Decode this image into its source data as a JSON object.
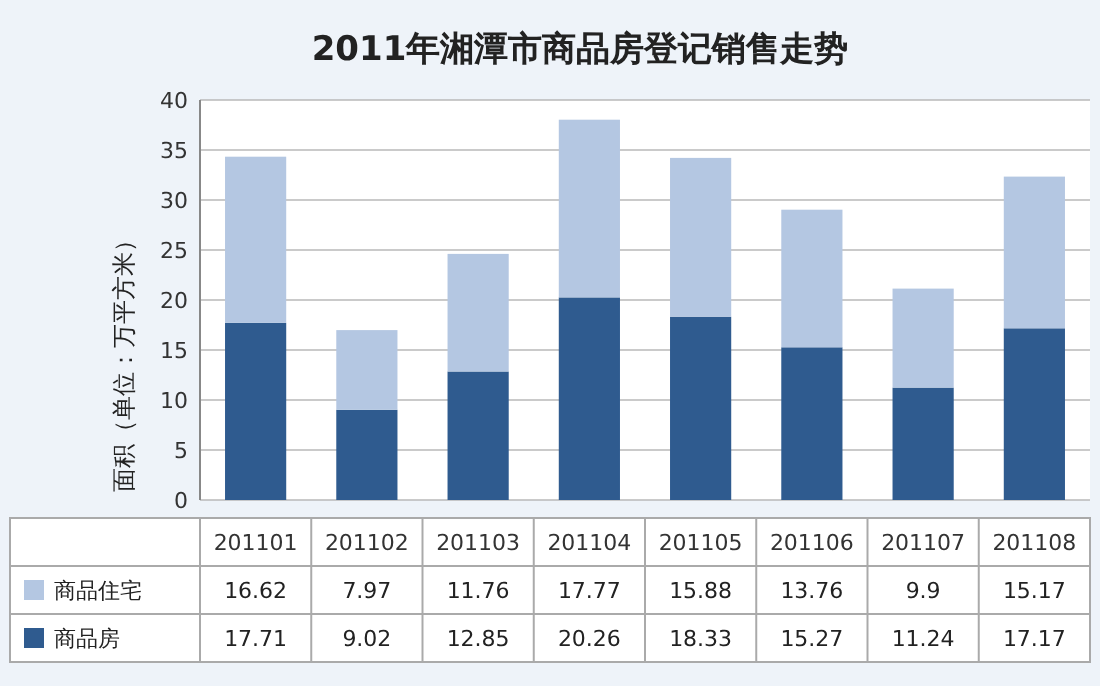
{
  "chart_data": {
    "type": "bar",
    "stacked": true,
    "title": "2011年湘潭市商品房登记销售走势",
    "ylabel": "面积（单位：万平方米）",
    "categories": [
      "201101",
      "201102",
      "201103",
      "201104",
      "201105",
      "201106",
      "201107",
      "201108"
    ],
    "series": [
      {
        "name": "商品房",
        "color": "#2f5b8f",
        "values": [
          17.71,
          9.02,
          12.85,
          20.26,
          18.33,
          15.27,
          11.24,
          17.17
        ]
      },
      {
        "name": "商品住宅",
        "color": "#b4c7e2",
        "values": [
          16.62,
          7.97,
          11.76,
          17.77,
          15.88,
          13.76,
          9.9,
          15.17
        ]
      }
    ],
    "ylim": [
      0,
      40
    ],
    "yticks": [
      0,
      5,
      10,
      15,
      20,
      25,
      30,
      35,
      40
    ],
    "grid": "y",
    "legend": "bottom",
    "data_labels": true
  }
}
